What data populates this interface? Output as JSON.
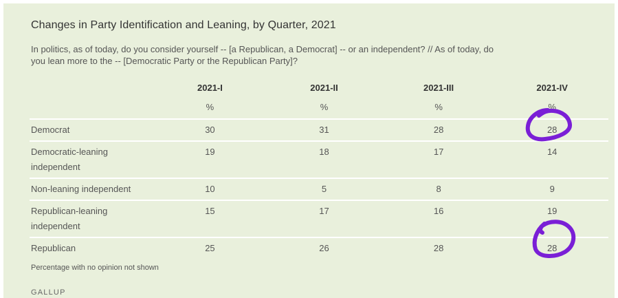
{
  "title": "Changes in Party Identification and Leaning, by Quarter, 2021",
  "question": "In politics, as of today, do you consider yourself -- [a Republican, a Democrat] -- or an independent? // As of today, do you lean more to the -- [Democratic Party or the Republican Party]?",
  "table": {
    "columns": [
      "2021-I",
      "2021-II",
      "2021-III",
      "2021-IV"
    ],
    "unit_row": [
      "%",
      "%",
      "%",
      "%"
    ],
    "rows": [
      {
        "label": "Democrat",
        "values": [
          "30",
          "31",
          "28",
          "28"
        ]
      },
      {
        "label": "Democratic-leaning independent",
        "values": [
          "19",
          "18",
          "17",
          "14"
        ]
      },
      {
        "label": "Non-leaning independent",
        "values": [
          "10",
          "5",
          "8",
          "9"
        ]
      },
      {
        "label": "Republican-leaning independent",
        "values": [
          "15",
          "17",
          "16",
          "19"
        ]
      },
      {
        "label": "Republican",
        "values": [
          "25",
          "26",
          "28",
          "28"
        ]
      }
    ]
  },
  "footnote": "Percentage with no opinion not shown",
  "source": "GALLUP",
  "annotation_color": "#7a1fd6"
}
